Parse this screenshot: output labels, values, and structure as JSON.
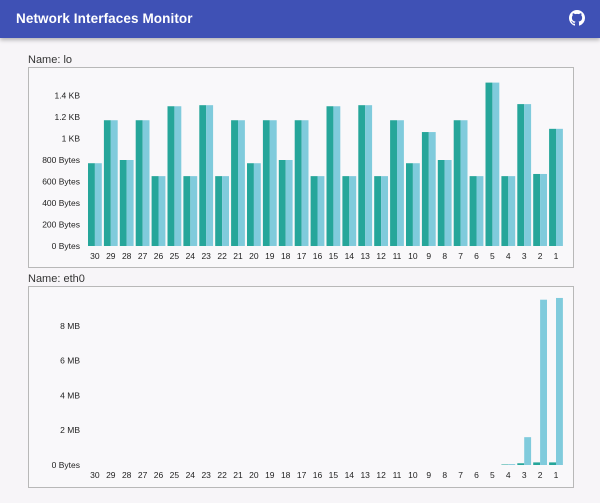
{
  "app": {
    "title": "Network Interfaces Monitor",
    "github_icon": "github-icon",
    "colors": {
      "appbar": "#3f51b5",
      "bar_dark": "#26a69a",
      "bar_light": "#80cbdc"
    }
  },
  "panels": [
    {
      "name": "Name: lo",
      "chart_data": {
        "type": "bar",
        "categories": [
          "30",
          "29",
          "28",
          "27",
          "26",
          "25",
          "24",
          "23",
          "22",
          "21",
          "20",
          "19",
          "18",
          "17",
          "16",
          "15",
          "14",
          "13",
          "12",
          "11",
          "10",
          "9",
          "8",
          "7",
          "6",
          "5",
          "4",
          "3",
          "2",
          "1"
        ],
        "series": [
          {
            "color": "#26a69a",
            "values": [
              770,
              1170,
              800,
              1170,
              650,
              1300,
              650,
              1310,
              650,
              1170,
              770,
              1170,
              800,
              1170,
              650,
              1300,
              650,
              1310,
              650,
              1170,
              770,
              1060,
              800,
              1170,
              650,
              1520,
              650,
              1320,
              670,
              1090
            ]
          },
          {
            "color": "#80cbdc",
            "values": [
              770,
              1170,
              800,
              1170,
              650,
              1300,
              650,
              1310,
              650,
              1170,
              770,
              1170,
              800,
              1170,
              650,
              1300,
              650,
              1310,
              650,
              1170,
              770,
              1060,
              800,
              1170,
              650,
              1520,
              650,
              1320,
              670,
              1090
            ]
          }
        ],
        "y_ticks": [
          "0 Bytes",
          "200 Bytes",
          "400 Bytes",
          "600 Bytes",
          "800 Bytes",
          "1 KB",
          "1.2 KB",
          "1.4 KB"
        ],
        "y_tick_values": [
          0,
          200,
          400,
          600,
          800,
          1000,
          1200,
          1400
        ],
        "ylim": [
          0,
          1600
        ],
        "grid": false
      }
    },
    {
      "name": "Name: eth0",
      "chart_data": {
        "type": "bar",
        "categories": [
          "30",
          "29",
          "28",
          "27",
          "26",
          "25",
          "24",
          "23",
          "22",
          "21",
          "20",
          "19",
          "18",
          "17",
          "16",
          "15",
          "14",
          "13",
          "12",
          "11",
          "10",
          "9",
          "8",
          "7",
          "6",
          "5",
          "4",
          "3",
          "2",
          "1"
        ],
        "series": [
          {
            "color": "#26a69a",
            "values": [
              0,
              0,
              0,
              0,
              0,
              0,
              0,
              0,
              0,
              0,
              0,
              0,
              0,
              0,
              0,
              0,
              0,
              0,
              0,
              0,
              0,
              0,
              0,
              0,
              0,
              0,
              0.03,
              0.1,
              0.15,
              0.15
            ]
          },
          {
            "color": "#80cbdc",
            "values": [
              0,
              0,
              0,
              0,
              0,
              0,
              0,
              0,
              0,
              0,
              0,
              0,
              0,
              0,
              0,
              0,
              0,
              0,
              0,
              0,
              0,
              0,
              0,
              0,
              0,
              0,
              0.05,
              1.6,
              9.5,
              9.6
            ]
          }
        ],
        "y_ticks": [
          "0 Bytes",
          "2 MB",
          "4 MB",
          "6 MB",
          "8 MB"
        ],
        "y_tick_values": [
          0,
          2,
          4,
          6,
          8
        ],
        "ylim": [
          0,
          10
        ],
        "grid": false
      }
    }
  ]
}
